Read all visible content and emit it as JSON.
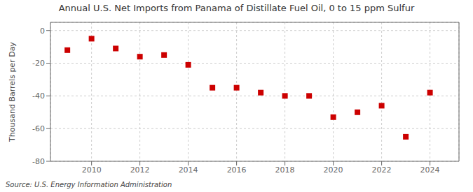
{
  "chart_data": {
    "type": "scatter",
    "title": "Annual U.S. Net Imports from Panama of Distillate Fuel Oil, 0 to 15 ppm Sulfur",
    "y_label": "Thousand Barrels per Day",
    "annotations": [
      "Source: U.S. Energy Information Administration"
    ],
    "x": [
      2009,
      2010,
      2011,
      2012,
      2013,
      2014,
      2015,
      2016,
      2017,
      2018,
      2019,
      2020,
      2021,
      2022,
      2023,
      2024
    ],
    "values": [
      -12,
      -5,
      -11,
      -16,
      -15,
      -21,
      -35,
      -35,
      -38,
      -40,
      -40,
      -53,
      -50,
      -46,
      -65,
      -38
    ],
    "color": "#cc0000",
    "marker": "square",
    "xlim": [
      2008.3,
      2025.2
    ],
    "xticks": [
      2010,
      2012,
      2014,
      2016,
      2018,
      2020,
      2022,
      2024
    ],
    "ylim": [
      -80,
      5
    ],
    "yticks": [
      0,
      -20,
      -40,
      -60,
      -80
    ],
    "grid": true
  }
}
